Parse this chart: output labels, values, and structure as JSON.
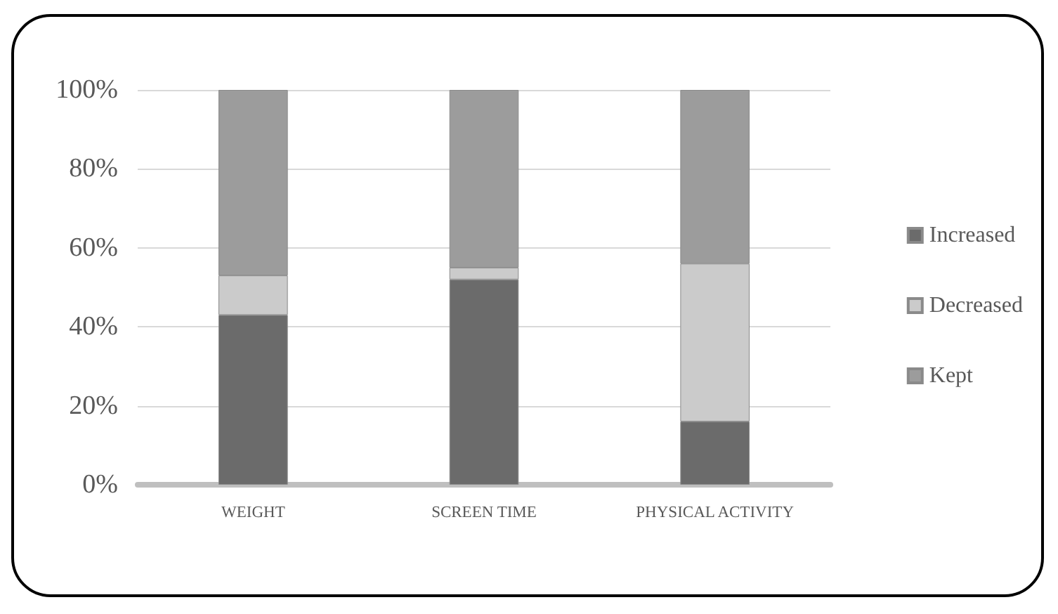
{
  "chart_data": {
    "type": "bar",
    "stacked": true,
    "categories": [
      "WEIGHT",
      "SCREEN TIME",
      "PHYSICAL ACTIVITY"
    ],
    "series": [
      {
        "name": "Increased",
        "color": "#6b6b6b",
        "values": [
          43,
          52,
          16
        ]
      },
      {
        "name": "Decreased",
        "color": "#cbcbcb",
        "values": [
          10,
          3,
          40
        ]
      },
      {
        "name": "Kept",
        "color": "#9c9c9c",
        "values": [
          47,
          45,
          44
        ]
      }
    ],
    "ylim": [
      0,
      100
    ],
    "yticks": [
      {
        "value": 0,
        "label": "0%"
      },
      {
        "value": 20,
        "label": "20%"
      },
      {
        "value": 40,
        "label": "40%"
      },
      {
        "value": 60,
        "label": "60%"
      },
      {
        "value": 80,
        "label": "80%"
      },
      {
        "value": 100,
        "label": "100%"
      }
    ],
    "grid": "y",
    "legend": "right"
  }
}
